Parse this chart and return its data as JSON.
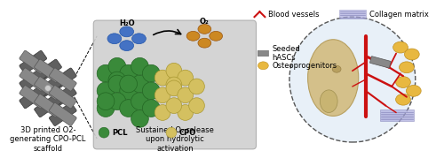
{
  "bg_color": "#ffffff",
  "panel_bg": "#d0d0d0",
  "title1": "3D printed O2-\ngenerating CPO-PCL\nscaffold",
  "title2": "Sustained O₂ release\nupon hydrolytic\nactivation",
  "label_pcl": "PCL",
  "label_cpo": "CPO",
  "label_h2o": "H₂O",
  "label_o2": "O₂",
  "label_hASCs": "Seeded\nhASCs",
  "label_osteo": "Osteoprogenitors",
  "label_blood": "Blood vessels",
  "label_collagen": "Collagen matrix",
  "color_pcl": "#3a8a3a",
  "color_cpo": "#d4c060",
  "color_h2o": "#4472c4",
  "color_o2": "#cc8822",
  "color_scaffold": "#808080",
  "color_blood_vessel": "#cc1111",
  "color_bone": "#d4c08a",
  "color_collagen": "#aaaadd",
  "color_osteoprogenitor": "#e8b840",
  "font_size_label": 6,
  "font_size_title": 6
}
